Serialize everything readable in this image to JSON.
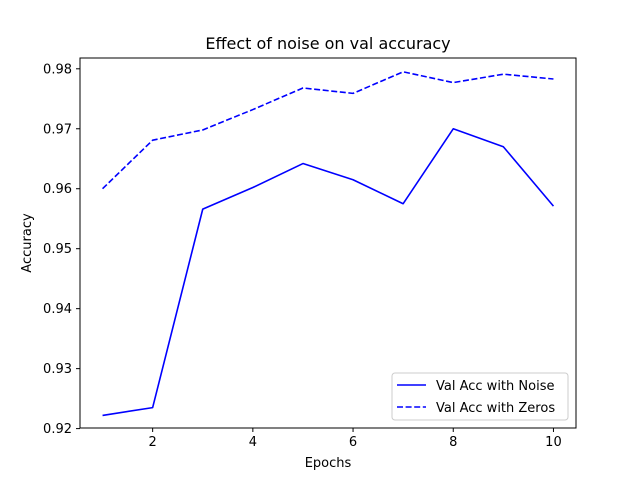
{
  "chart_data": {
    "type": "line",
    "title": "Effect of noise on val accuracy",
    "xlabel": "Epochs",
    "ylabel": "Accuracy",
    "xlim": [
      0.55,
      10.45
    ],
    "ylim": [
      0.9201,
      0.9818
    ],
    "x_ticks": [
      2,
      4,
      6,
      8,
      10
    ],
    "x_tick_labels": [
      "2",
      "4",
      "6",
      "8",
      "10"
    ],
    "y_ticks": [
      0.92,
      0.93,
      0.94,
      0.95,
      0.96,
      0.97,
      0.98
    ],
    "y_tick_labels": [
      "0.92",
      "0.93",
      "0.94",
      "0.95",
      "0.96",
      "0.97",
      "0.98"
    ],
    "grid": false,
    "legend_position": "lower-right",
    "x": [
      1,
      2,
      3,
      4,
      5,
      6,
      7,
      8,
      9,
      10
    ],
    "series": [
      {
        "name": "Val Acc with Noise",
        "values": [
          0.9222,
          0.9235,
          0.9566,
          0.9602,
          0.9642,
          0.9615,
          0.9575,
          0.97,
          0.967,
          0.9571
        ],
        "color": "#0000ff",
        "line_style": "solid"
      },
      {
        "name": "Val Acc with Zeros",
        "values": [
          0.96,
          0.9681,
          0.9698,
          0.9732,
          0.9768,
          0.9759,
          0.9795,
          0.9777,
          0.9791,
          0.9783
        ],
        "color": "#0000ff",
        "line_style": "dashed"
      }
    ]
  }
}
